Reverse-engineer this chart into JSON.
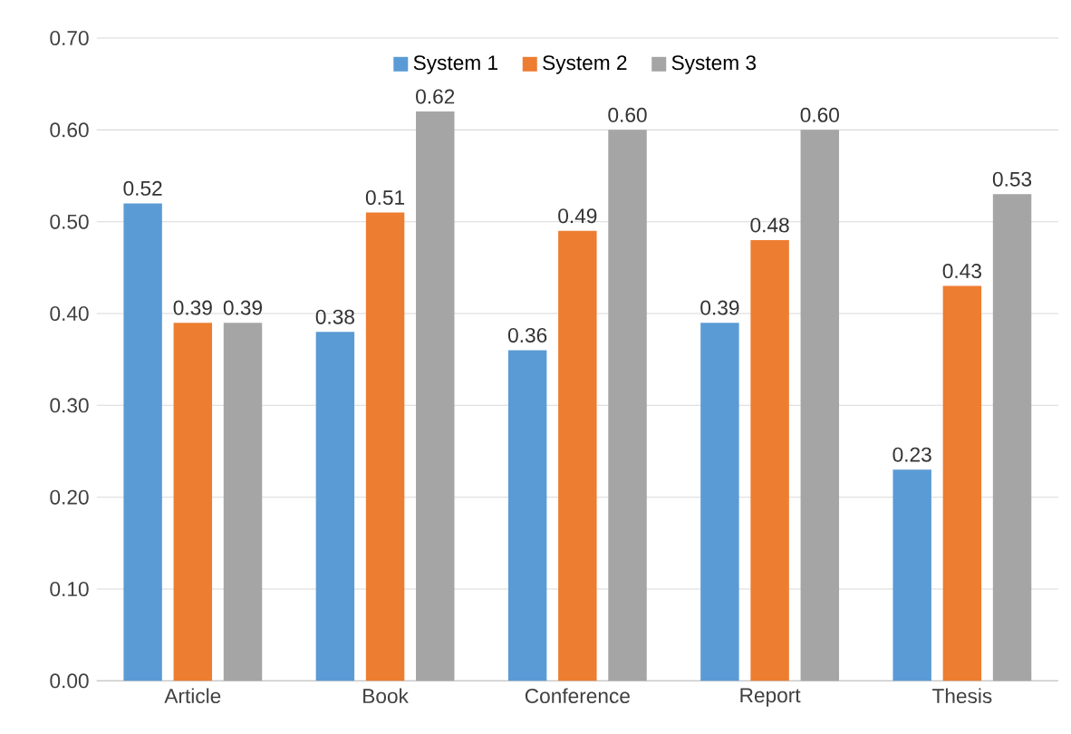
{
  "chart_data": {
    "type": "bar",
    "categories": [
      "Article",
      "Book",
      "Conference",
      "Report",
      "Thesis"
    ],
    "series": [
      {
        "name": "System 1",
        "color": "#5b9bd5",
        "values": [
          0.52,
          0.38,
          0.36,
          0.39,
          0.23
        ],
        "value_labels": [
          "0.52",
          "0.38",
          "0.36",
          "0.39",
          "0.23"
        ]
      },
      {
        "name": "System 2",
        "color": "#ed7d31",
        "values": [
          0.39,
          0.51,
          0.49,
          0.48,
          0.43
        ],
        "value_labels": [
          "0.39",
          "0.51",
          "0.49",
          "0.48",
          "0.43"
        ]
      },
      {
        "name": "System 3",
        "color": "#a5a5a5",
        "values": [
          0.39,
          0.62,
          0.6,
          0.6,
          0.53
        ],
        "value_labels": [
          "0.39",
          "0.62",
          "0.60",
          "0.60",
          "0.53"
        ]
      }
    ],
    "ylim": [
      0,
      0.7
    ],
    "yticks": [
      {
        "value": 0,
        "label": "0.00"
      },
      {
        "value": 0.1,
        "label": "0.10"
      },
      {
        "value": 0.2,
        "label": "0.20"
      },
      {
        "value": 0.3,
        "label": "0.30"
      },
      {
        "value": 0.4,
        "label": "0.40"
      },
      {
        "value": 0.5,
        "label": "0.50"
      },
      {
        "value": 0.6,
        "label": "0.60"
      },
      {
        "value": 0.7,
        "label": "0.70"
      }
    ],
    "grid": "y",
    "legend": "top"
  }
}
